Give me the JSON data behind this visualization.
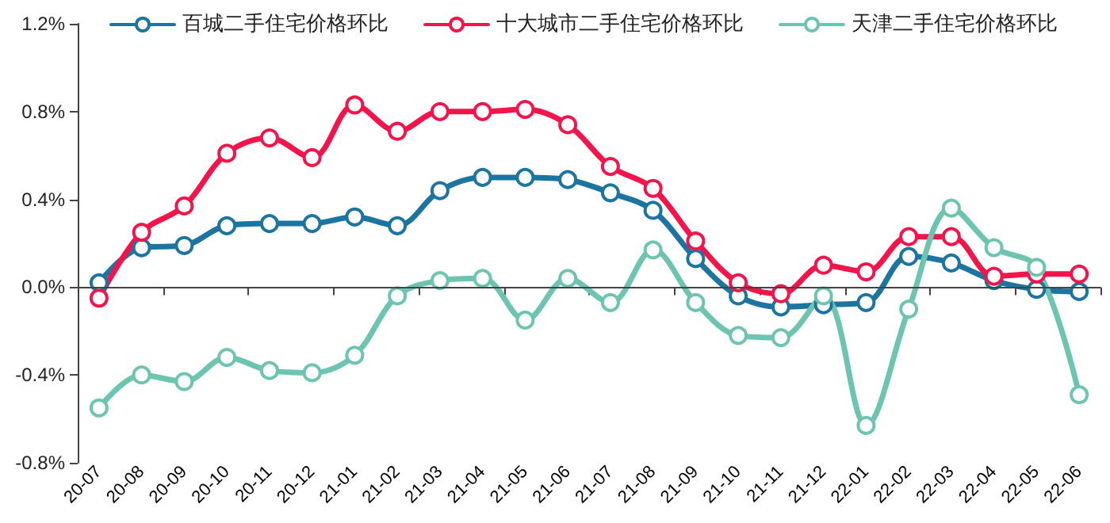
{
  "chart_data": {
    "type": "line",
    "categories": [
      "20-07",
      "20-08",
      "20-09",
      "20-10",
      "20-11",
      "20-12",
      "21-01",
      "21-02",
      "21-03",
      "21-04",
      "21-05",
      "21-06",
      "21-07",
      "21-08",
      "21-09",
      "21-10",
      "21-11",
      "21-12",
      "22-01",
      "22-02",
      "22-03",
      "22-04",
      "22-05",
      "22-06"
    ],
    "series": [
      {
        "name": "百城二手住宅价格环比",
        "color": "#1c74a0",
        "values": [
          0.02,
          0.18,
          0.19,
          0.28,
          0.29,
          0.29,
          0.32,
          0.28,
          0.44,
          0.5,
          0.5,
          0.49,
          0.43,
          0.35,
          0.13,
          -0.04,
          -0.09,
          -0.08,
          -0.07,
          0.14,
          0.11,
          0.03,
          -0.01,
          -0.02
        ]
      },
      {
        "name": "十大城市二手住宅价格环比",
        "color": "#f2154b",
        "values": [
          -0.05,
          0.25,
          0.37,
          0.61,
          0.68,
          0.59,
          0.83,
          0.71,
          0.8,
          0.8,
          0.81,
          0.74,
          0.55,
          0.45,
          0.21,
          0.02,
          -0.03,
          0.1,
          0.07,
          0.23,
          0.23,
          0.05,
          0.06,
          0.06
        ]
      },
      {
        "name": "天津二手住宅价格环比",
        "color": "#6cc4b1",
        "values": [
          -0.55,
          -0.4,
          -0.43,
          -0.32,
          -0.38,
          -0.39,
          -0.31,
          -0.04,
          0.03,
          0.04,
          -0.15,
          0.04,
          -0.07,
          0.17,
          -0.07,
          -0.22,
          -0.23,
          -0.04,
          -0.63,
          -0.1,
          0.36,
          0.18,
          0.09,
          -0.49
        ]
      }
    ],
    "ylim": [
      -0.8,
      1.2
    ],
    "yticks": [
      {
        "value": -0.8,
        "label": "-0.8%"
      },
      {
        "value": -0.4,
        "label": "-0.4%"
      },
      {
        "value": 0,
        "label": "0.0%"
      },
      {
        "value": 0.4,
        "label": "0.4%"
      },
      {
        "value": 0.8,
        "label": "0.8%"
      },
      {
        "value": 1.2,
        "label": "1.2%"
      }
    ],
    "ref_lines": [
      {
        "axis": "y",
        "value": 0,
        "color": "#444444",
        "line_style": "solid"
      }
    ],
    "grid": false,
    "legend": "top",
    "marker": "circle",
    "line_style": "solid"
  }
}
